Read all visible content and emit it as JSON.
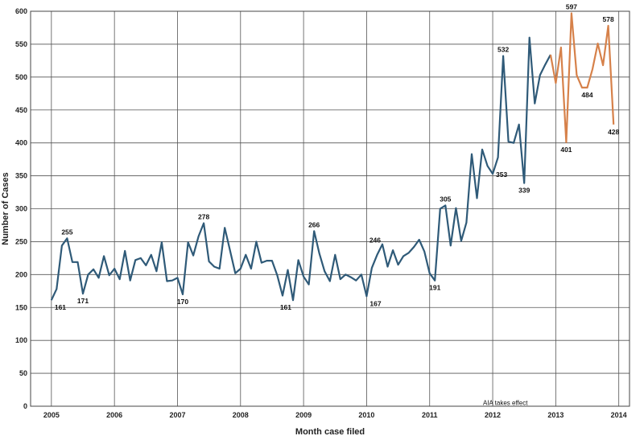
{
  "chart_data": {
    "type": "line",
    "title": "",
    "xlabel": "Month case filed",
    "ylabel": "Number of Cases",
    "ylim": [
      0,
      600
    ],
    "yticks": [
      0,
      50,
      100,
      150,
      200,
      250,
      300,
      350,
      400,
      450,
      500,
      550,
      600
    ],
    "xlim": [
      2004.67,
      2014.17
    ],
    "xticks": [
      "2005",
      "2006",
      "2007",
      "2008",
      "2009",
      "2010",
      "2011",
      "2012",
      "2013",
      "2014"
    ],
    "grid": true,
    "annotations": [
      {
        "text": "AIA takes effect",
        "x": 2012.2,
        "y": 2
      }
    ],
    "series": [
      {
        "color": "#2f5a78",
        "x": [
          2005.0,
          2005.083,
          2005.167,
          2005.25,
          2005.333,
          2005.417,
          2005.5,
          2005.583,
          2005.667,
          2005.75,
          2005.833,
          2005.917,
          2006.0,
          2006.083,
          2006.167,
          2006.25,
          2006.333,
          2006.417,
          2006.5,
          2006.583,
          2006.667,
          2006.75,
          2006.833,
          2006.917,
          2007.0,
          2007.083,
          2007.167,
          2007.25,
          2007.333,
          2007.417,
          2007.5,
          2007.583,
          2007.667,
          2007.75,
          2007.833,
          2007.917,
          2008.0,
          2008.083,
          2008.167,
          2008.25,
          2008.333,
          2008.417,
          2008.5,
          2008.583,
          2008.667,
          2008.75,
          2008.833,
          2008.917,
          2009.0,
          2009.083,
          2009.167,
          2009.25,
          2009.333,
          2009.417,
          2009.5,
          2009.583,
          2009.667,
          2009.75,
          2009.833,
          2009.917,
          2010.0,
          2010.083,
          2010.167,
          2010.25,
          2010.333,
          2010.417,
          2010.5,
          2010.583,
          2010.667,
          2010.75,
          2010.833,
          2010.917,
          2011.0,
          2011.083,
          2011.167,
          2011.25,
          2011.333,
          2011.417,
          2011.5,
          2011.583,
          2011.667,
          2011.75,
          2011.833,
          2011.917,
          2012.0,
          2012.083,
          2012.167,
          2012.25,
          2012.333,
          2012.417,
          2012.5,
          2012.583,
          2012.667,
          2012.75,
          2012.833,
          2012.917
        ],
        "y": [
          161,
          178,
          244,
          255,
          219,
          219,
          171,
          200,
          208,
          195,
          228,
          199,
          209,
          193,
          236,
          191,
          222,
          225,
          214,
          230,
          205,
          249,
          190,
          191,
          195,
          170,
          249,
          229,
          258,
          278,
          220,
          212,
          209,
          271,
          237,
          202,
          209,
          230,
          209,
          250,
          218,
          221,
          221,
          199,
          168,
          207,
          161,
          222,
          197,
          185,
          266,
          232,
          205,
          190,
          230,
          193,
          200,
          196,
          191,
          200,
          167,
          210,
          230,
          246,
          212,
          237,
          215,
          228,
          233,
          242,
          253,
          235,
          202,
          191,
          300,
          305,
          244,
          301,
          251,
          279,
          383,
          316,
          390,
          365,
          353,
          378,
          532,
          402,
          400,
          428,
          339,
          560,
          460,
          503,
          519,
          534
        ]
      },
      {
        "color": "#d6814a",
        "x": [
          2012.917,
          2013.0,
          2013.083,
          2013.167,
          2013.25,
          2013.333,
          2013.417,
          2013.5,
          2013.583,
          2013.667,
          2013.75,
          2013.833,
          2013.917
        ],
        "y": [
          534,
          491,
          545,
          401,
          597,
          503,
          484,
          484,
          512,
          551,
          518,
          578,
          428
        ]
      }
    ],
    "data_labels": [
      {
        "text": "161",
        "x": 2005.0,
        "y": 161,
        "pos": "br"
      },
      {
        "text": "255",
        "x": 2005.25,
        "y": 255,
        "pos": "t"
      },
      {
        "text": "171",
        "x": 2005.5,
        "y": 171,
        "pos": "b"
      },
      {
        "text": "170",
        "x": 2007.083,
        "y": 170,
        "pos": "b"
      },
      {
        "text": "278",
        "x": 2007.417,
        "y": 278,
        "pos": "t"
      },
      {
        "text": "161",
        "x": 2008.833,
        "y": 161,
        "pos": "bl"
      },
      {
        "text": "266",
        "x": 2009.167,
        "y": 266,
        "pos": "t"
      },
      {
        "text": "167",
        "x": 2010.0,
        "y": 167,
        "pos": "br"
      },
      {
        "text": "246",
        "x": 2010.25,
        "y": 246,
        "pos": "tl"
      },
      {
        "text": "191",
        "x": 2011.083,
        "y": 191,
        "pos": "b"
      },
      {
        "text": "305",
        "x": 2011.25,
        "y": 305,
        "pos": "t"
      },
      {
        "text": "353",
        "x": 2012.0,
        "y": 353,
        "pos": "r"
      },
      {
        "text": "532",
        "x": 2012.167,
        "y": 532,
        "pos": "t"
      },
      {
        "text": "339",
        "x": 2012.5,
        "y": 339,
        "pos": "b"
      },
      {
        "text": "401",
        "x": 2013.167,
        "y": 401,
        "pos": "b"
      },
      {
        "text": "597",
        "x": 2013.25,
        "y": 597,
        "pos": "t"
      },
      {
        "text": "484",
        "x": 2013.5,
        "y": 484,
        "pos": "b"
      },
      {
        "text": "578",
        "x": 2013.833,
        "y": 578,
        "pos": "t"
      },
      {
        "text": "428",
        "x": 2013.917,
        "y": 428,
        "pos": "b"
      }
    ]
  }
}
